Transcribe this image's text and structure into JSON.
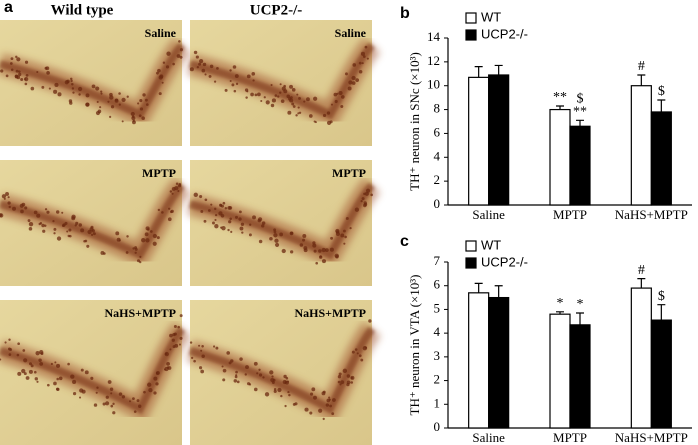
{
  "panel_a": {
    "label": "a",
    "columns": [
      "Wild type",
      "UCP2-/-"
    ],
    "images": [
      "Saline",
      "Saline",
      "MPTP",
      "MPTP",
      "NaHS+MPTP",
      "NaHS+MPTP"
    ]
  },
  "chart_data": [
    {
      "type": "bar",
      "panel_label": "b",
      "y_label": "TH⁺ neuron in SNc (×10³)",
      "categories": [
        "Saline",
        "MPTP",
        "NaHS+MPTP"
      ],
      "series": [
        {
          "name": "WT",
          "color": "#ffffff",
          "values": [
            10.7,
            8.0,
            10.0
          ],
          "errors": [
            0.9,
            0.3,
            0.9
          ],
          "annotations": [
            null,
            [
              "**"
            ],
            [
              "#"
            ]
          ]
        },
        {
          "name": "UCP2-/-",
          "color": "#000000",
          "values": [
            10.9,
            6.6,
            7.8
          ],
          "errors": [
            0.8,
            0.5,
            1.0
          ],
          "annotations": [
            null,
            [
              "$",
              "**"
            ],
            [
              "$"
            ]
          ]
        }
      ],
      "ylim": [
        0,
        14
      ],
      "yticks": [
        0,
        2,
        4,
        6,
        8,
        10,
        12,
        14
      ]
    },
    {
      "type": "bar",
      "panel_label": "c",
      "y_label": "TH⁺ neuron in VTA (×10³)",
      "categories": [
        "Saline",
        "MPTP",
        "NaHS+MPTP"
      ],
      "series": [
        {
          "name": "WT",
          "color": "#ffffff",
          "values": [
            5.7,
            4.8,
            5.9
          ],
          "errors": [
            0.4,
            0.1,
            0.4
          ],
          "annotations": [
            null,
            [
              "*"
            ],
            [
              "#"
            ]
          ]
        },
        {
          "name": "UCP2-/-",
          "color": "#000000",
          "values": [
            5.5,
            4.35,
            4.55
          ],
          "errors": [
            0.5,
            0.5,
            0.65
          ],
          "annotations": [
            null,
            [
              "*"
            ],
            [
              "$"
            ]
          ]
        }
      ],
      "ylim": [
        0,
        7
      ],
      "yticks": [
        0,
        1,
        2,
        3,
        4,
        5,
        6,
        7
      ]
    }
  ]
}
